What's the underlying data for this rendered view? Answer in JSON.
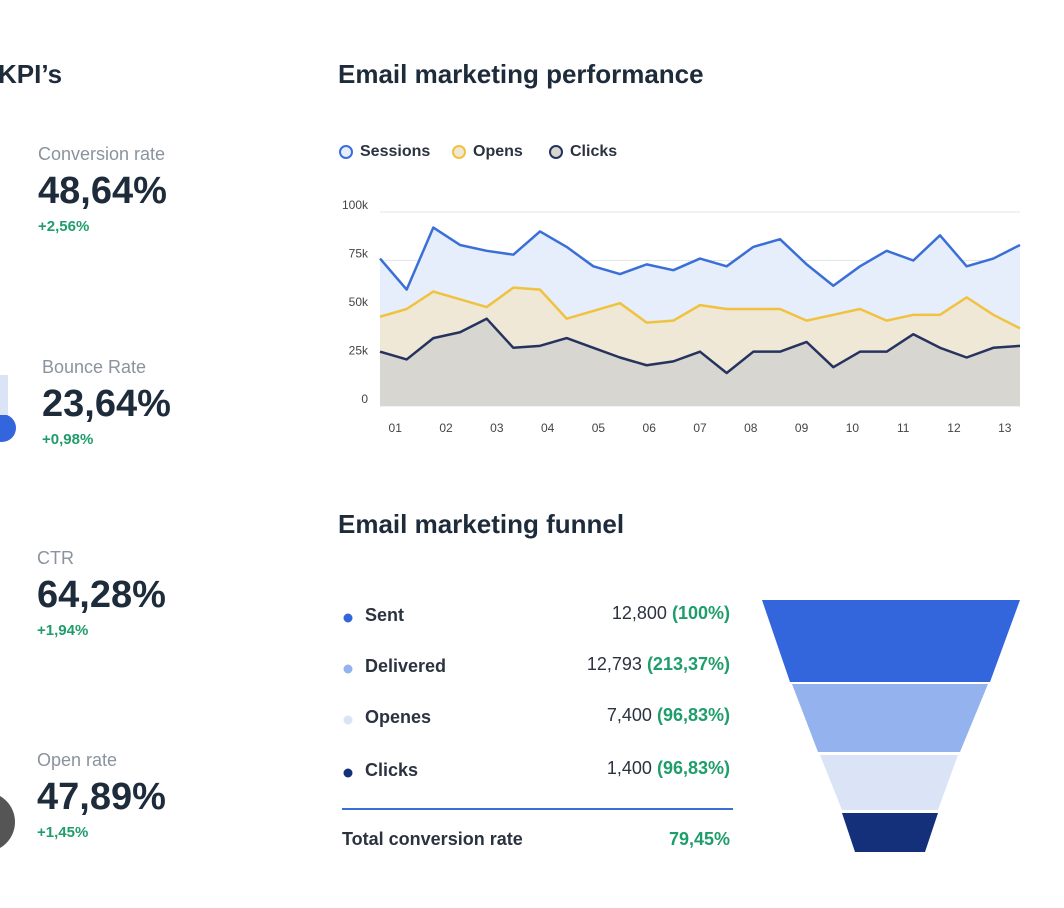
{
  "kpis": {
    "title": "KPI’s",
    "items": [
      {
        "label": "Conversion rate",
        "value": "48,64%",
        "change": "+2,56%"
      },
      {
        "label": "Bounce Rate",
        "value": "23,64%",
        "change": "+0,98%"
      },
      {
        "label": "CTR",
        "value": "64,28%",
        "change": "+1,94%"
      },
      {
        "label": "Open rate",
        "value": "47,89%",
        "change": "+1,45%"
      }
    ]
  },
  "chart_data": {
    "type": "line",
    "title": "Email marketing performance",
    "x": [
      0.7,
      1.225,
      1.75,
      2.275,
      2.8,
      3.325,
      3.85,
      4.375,
      4.9,
      5.425,
      5.95,
      6.475,
      7.0,
      7.525,
      8.05,
      8.575,
      9.1,
      9.625,
      10.15,
      10.675,
      11.2,
      11.725,
      12.25,
      12.775,
      13.3
    ],
    "xlim": [
      0.7,
      13.3
    ],
    "xticks": [
      {
        "value": 1,
        "label": "01"
      },
      {
        "value": 2,
        "label": "02"
      },
      {
        "value": 3,
        "label": "03"
      },
      {
        "value": 4,
        "label": "04"
      },
      {
        "value": 5,
        "label": "05"
      },
      {
        "value": 6,
        "label": "06"
      },
      {
        "value": 7,
        "label": "07"
      },
      {
        "value": 8,
        "label": "08"
      },
      {
        "value": 9,
        "label": "09"
      },
      {
        "value": 10,
        "label": "10"
      },
      {
        "value": 11,
        "label": "11"
      },
      {
        "value": 12,
        "label": "12"
      },
      {
        "value": 13,
        "label": "13"
      }
    ],
    "ylim": [
      0,
      100000
    ],
    "yticks": [
      0,
      {
        "value": 25000,
        "label": "25k"
      },
      {
        "value": 50000,
        "label": "50k"
      },
      {
        "value": 75000,
        "label": "75k"
      },
      {
        "value": 100000,
        "label": "100k"
      }
    ],
    "grid": true,
    "series": [
      {
        "name": "Sessions",
        "color": "#3a6fd8",
        "fill": "#e6edfb",
        "values": [
          76000,
          60000,
          92000,
          83000,
          80000,
          78000,
          90000,
          82000,
          72000,
          68000,
          73000,
          70000,
          76000,
          72000,
          82000,
          86000,
          73000,
          62000,
          72000,
          80000,
          75000,
          88000,
          72000,
          76000,
          83000
        ]
      },
      {
        "name": "Opens",
        "color": "#f0c240",
        "fill": "#efe8d6",
        "values": [
          46000,
          50000,
          59000,
          55000,
          51000,
          61000,
          60000,
          45000,
          49000,
          53000,
          43000,
          44000,
          52000,
          50000,
          50000,
          50000,
          44000,
          47000,
          50000,
          44000,
          47000,
          47000,
          56000,
          47000,
          40000
        ]
      },
      {
        "name": "Clicks",
        "color": "#26335f",
        "fill": "#d8d6d0",
        "values": [
          28000,
          24000,
          35000,
          38000,
          45000,
          30000,
          31000,
          35000,
          30000,
          25000,
          21000,
          23000,
          28000,
          17000,
          28000,
          28000,
          33000,
          20000,
          28000,
          28000,
          37000,
          30000,
          25000,
          30000,
          31000
        ]
      }
    ]
  },
  "funnel": {
    "title": "Email marketing funnel",
    "rows": [
      {
        "name": "Sent",
        "count": "12,800",
        "percent": "(100%)"
      },
      {
        "name": "Delivered",
        "count": "12,793",
        "percent": "(213,37%)"
      },
      {
        "name": "Openes",
        "count": "7,400",
        "percent": "(96,83%)"
      },
      {
        "name": "Clicks",
        "count": "1,400",
        "percent": "(96,83%)"
      }
    ],
    "total_label": "Total conversion rate",
    "total_value": "79,45%"
  }
}
